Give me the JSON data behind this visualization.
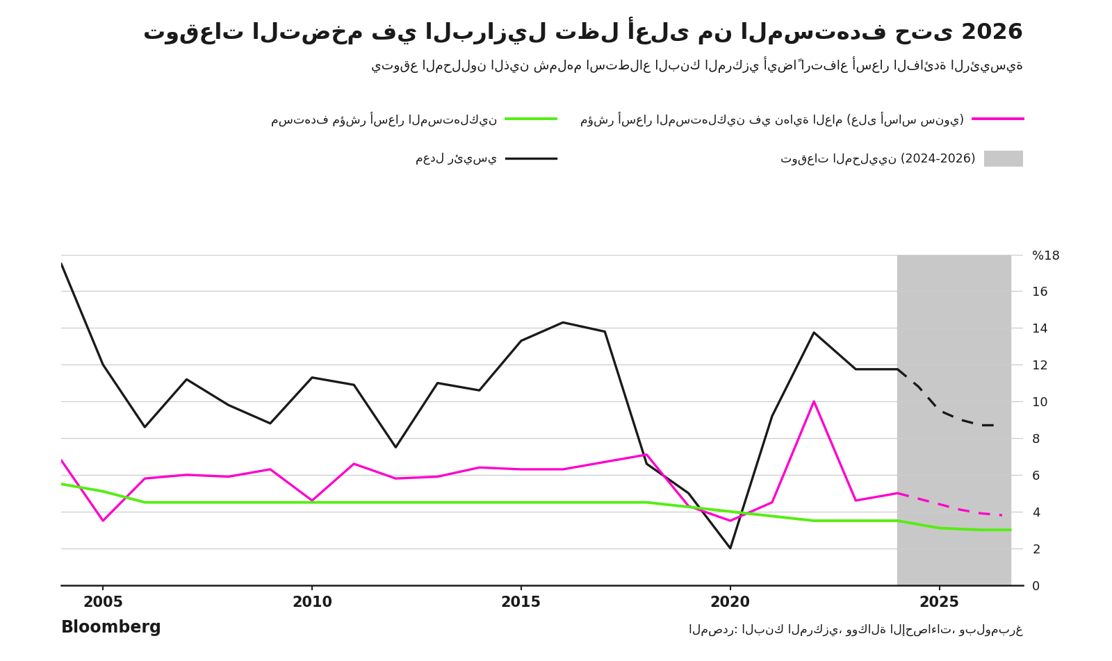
{
  "title": "توقعات التضخم في البرازيل تظل أعلى من المستهدف حتى 2026",
  "subtitle": "يتوقع المحللون الذين شملهم استطلاع البنك المركزي أيضاً ارتفاع أسعار الفائدة الرئيسية",
  "legend1": "مستهدف مؤشر أسعار المستهلكين",
  "legend2": "مؤشر أسعار المستهلكين في نهاية العام (على أساس سنوي)",
  "legend3_main": "معدل رئيسي",
  "legend3_forecast": "توقعات المحليين (2024-2026)",
  "source_right": "المصدر: البنك المركزي، ووكالة الإحصاءات، وبلومبرغ",
  "source_left": "Bloomberg",
  "bg_color": "#ffffff",
  "plot_bg_color": "#ffffff",
  "grid_color": "#cccccc",
  "shade_start": 2024.0,
  "shade_end": 2026.7,
  "shade_color": "#c8c8c8",
  "ylim": [
    0,
    18
  ],
  "yticks": [
    0,
    2,
    4,
    6,
    8,
    10,
    12,
    14,
    16,
    18
  ],
  "xticks": [
    2005,
    2010,
    2015,
    2020,
    2025
  ],
  "xlim": [
    2004.0,
    2027.0
  ],
  "black_x": [
    2004,
    2005,
    2006,
    2007,
    2008,
    2009,
    2010,
    2011,
    2012,
    2013,
    2014,
    2015,
    2016,
    2017,
    2018,
    2019,
    2020,
    2021,
    2022,
    2023,
    2024
  ],
  "black_y": [
    17.5,
    12.0,
    8.6,
    11.2,
    9.8,
    8.8,
    11.3,
    10.9,
    7.5,
    11.0,
    10.6,
    13.3,
    14.3,
    13.8,
    6.6,
    5.0,
    2.0,
    9.2,
    13.75,
    11.75,
    11.75
  ],
  "black_dash_x": [
    2024,
    2024.5,
    2025,
    2025.5,
    2026,
    2026.5
  ],
  "black_dash_y": [
    11.75,
    10.8,
    9.5,
    9.0,
    8.7,
    8.7
  ],
  "pink_x": [
    2004,
    2005,
    2006,
    2007,
    2008,
    2009,
    2010,
    2011,
    2012,
    2013,
    2014,
    2015,
    2016,
    2017,
    2018,
    2019,
    2020,
    2021,
    2022,
    2023,
    2024
  ],
  "pink_y": [
    6.8,
    3.5,
    5.8,
    6.0,
    5.9,
    6.3,
    4.6,
    6.6,
    5.8,
    5.9,
    6.4,
    6.3,
    6.3,
    6.7,
    7.1,
    4.3,
    3.5,
    4.5,
    10.0,
    4.6,
    5.0
  ],
  "pink_dash_x": [
    2024,
    2024.5,
    2025,
    2025.5,
    2026,
    2026.5
  ],
  "pink_dash_y": [
    5.0,
    4.7,
    4.4,
    4.1,
    3.9,
    3.8
  ],
  "green_x": [
    2004,
    2005,
    2006,
    2007,
    2008,
    2009,
    2010,
    2011,
    2012,
    2013,
    2014,
    2015,
    2016,
    2017,
    2018,
    2019,
    2020,
    2021,
    2022,
    2023,
    2024,
    2025,
    2026,
    2026.7
  ],
  "green_y": [
    5.5,
    5.1,
    4.5,
    4.5,
    4.5,
    4.5,
    4.5,
    4.5,
    4.5,
    4.5,
    4.5,
    4.5,
    4.5,
    4.5,
    4.5,
    4.25,
    4.0,
    3.75,
    3.5,
    3.5,
    3.5,
    3.1,
    3.0,
    3.0
  ],
  "colors": {
    "black_line": "#1a1a1a",
    "pink_line": "#ff00cc",
    "green_line": "#55ee11",
    "black_dash": "#1a1a1a",
    "pink_dash": "#ff00cc"
  }
}
